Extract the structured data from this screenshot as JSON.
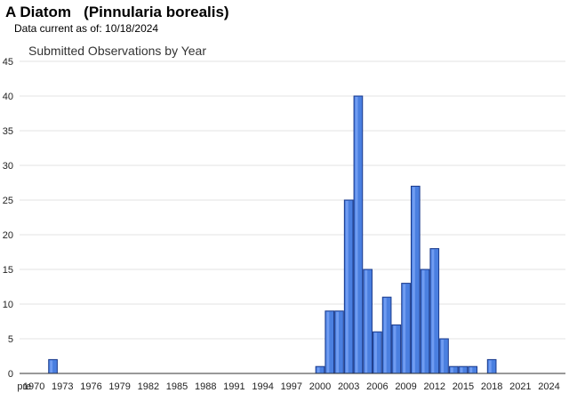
{
  "header": {
    "species_title": "A Diatom   (Pinnularia borealis)",
    "data_current": "Data current as of:  10/18/2024"
  },
  "chart_data": {
    "type": "bar",
    "title": "Submitted Observations by Year",
    "xlabel": "",
    "ylabel": "",
    "ylim": [
      0,
      45
    ],
    "yticks": [
      0,
      5,
      10,
      15,
      20,
      25,
      30,
      35,
      40,
      45
    ],
    "grid": true,
    "bar_color": "#4a7fe0",
    "bar_edge_color": "#1a3a8c",
    "xtick_labels": [
      "pre",
      "1970",
      "1973",
      "1976",
      "1979",
      "1982",
      "1985",
      "1988",
      "1991",
      "1994",
      "1997",
      "2000",
      "2003",
      "2006",
      "2009",
      "2012",
      "2015",
      "2018",
      "2021",
      "2024"
    ],
    "categories": [
      "pre",
      "1970",
      "1971",
      "1972",
      "1973",
      "1974",
      "1975",
      "1976",
      "1977",
      "1978",
      "1979",
      "1980",
      "1981",
      "1982",
      "1983",
      "1984",
      "1985",
      "1986",
      "1987",
      "1988",
      "1989",
      "1990",
      "1991",
      "1992",
      "1993",
      "1994",
      "1995",
      "1996",
      "1997",
      "1998",
      "1999",
      "2000",
      "2001",
      "2002",
      "2003",
      "2004",
      "2005",
      "2006",
      "2007",
      "2008",
      "2009",
      "2010",
      "2011",
      "2012",
      "2013",
      "2014",
      "2015",
      "2016",
      "2017",
      "2018",
      "2019",
      "2020",
      "2021",
      "2022",
      "2023",
      "2024"
    ],
    "values": [
      0,
      0,
      0,
      2,
      0,
      0,
      0,
      0,
      0,
      0,
      0,
      0,
      0,
      0,
      0,
      0,
      0,
      0,
      0,
      0,
      0,
      0,
      0,
      0,
      0,
      0,
      0,
      0,
      0,
      0,
      0,
      1,
      9,
      9,
      25,
      40,
      15,
      6,
      11,
      7,
      13,
      27,
      15,
      18,
      5,
      1,
      1,
      1,
      0,
      2,
      0,
      0,
      0,
      0,
      0,
      0
    ]
  }
}
